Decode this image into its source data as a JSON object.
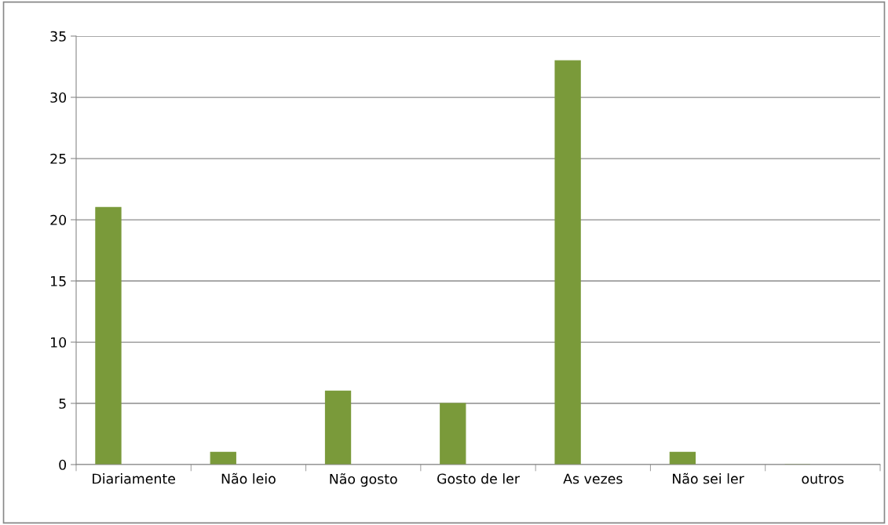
{
  "chart_data": {
    "type": "bar",
    "categories": [
      "Diariamente",
      "Não leio",
      "Não gosto",
      "Gosto de ler",
      "As vezes",
      "Não sei ler",
      "outros"
    ],
    "values": [
      21,
      1,
      6,
      5,
      33,
      1,
      0
    ],
    "color": "#7a9a3a",
    "ylim": [
      0,
      35
    ],
    "yticks": [
      0,
      5,
      10,
      15,
      20,
      25,
      30,
      35
    ],
    "grid": "y",
    "legend": false
  }
}
